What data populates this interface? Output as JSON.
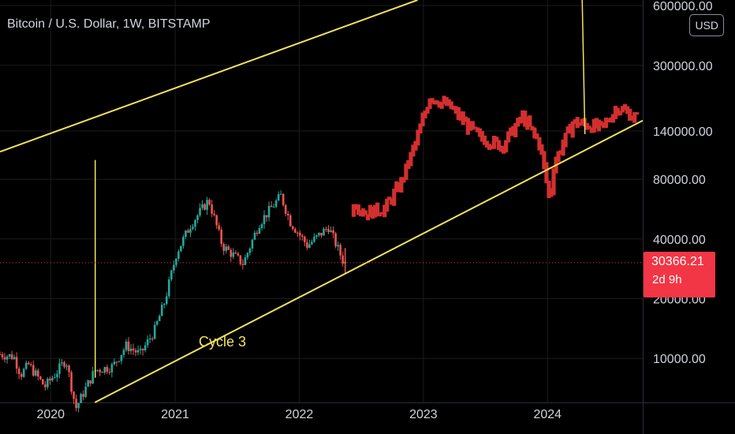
{
  "header": {
    "title": "Bitcoin / U.S. Dollar, 1W, BITSTAMP",
    "currency": "USD"
  },
  "price_tag": {
    "price": "30366.21",
    "countdown": "2d 9h"
  },
  "colors": {
    "up": "#26a69a",
    "down": "#ef5350",
    "projection": "#d32f2f",
    "channel": "#f2e25c",
    "grid": "#1c1c1c",
    "last_price_line": "#f23645"
  },
  "chart_data": {
    "type": "candlestick",
    "title": "Bitcoin / U.S. Dollar, 1W, BITSTAMP",
    "y_scale": "log",
    "ylim": [
      6000,
      640000
    ],
    "xlim": [
      "2019-08-05",
      "2024-10-07"
    ],
    "x_ticks": [
      "2020",
      "2021",
      "2022",
      "2023",
      "2024"
    ],
    "y_ticks": [
      "600000.00",
      "300000.00",
      "140000.00",
      "80000.00",
      "40000.00",
      "20000.00",
      "10000.00"
    ],
    "grid": true,
    "last_price": 30366.21,
    "annotations": [
      {
        "text": "Cycle 3",
        "date": "2021-05-20",
        "price": 11500
      }
    ],
    "channel_lines": [
      {
        "name": "upper",
        "points": [
          {
            "date": "2019-08-05",
            "price": 110000
          },
          {
            "date": "2022-12-15",
            "price": 640000
          }
        ]
      },
      {
        "name": "lower",
        "points": [
          {
            "date": "2020-05-10",
            "price": 6000
          },
          {
            "date": "2024-10-07",
            "price": 158000
          }
        ]
      }
    ],
    "vertical_lines": [
      {
        "date": "2020-05-11",
        "from": 8000,
        "to": 100000
      },
      {
        "from_date": "2024-04-12",
        "from_price": 640000,
        "to_date": "2024-04-20",
        "to_price": 135000
      }
    ],
    "actual_weekly_close_path": [
      {
        "date": "2019-08-05",
        "close": 10500
      },
      {
        "date": "2019-09-15",
        "close": 10200
      },
      {
        "date": "2019-10-05",
        "close": 8300
      },
      {
        "date": "2019-10-28",
        "close": 9300
      },
      {
        "date": "2019-12-15",
        "close": 7200
      },
      {
        "date": "2020-01-20",
        "close": 8600
      },
      {
        "date": "2020-02-15",
        "close": 9900
      },
      {
        "date": "2020-03-15",
        "close": 5600
      },
      {
        "date": "2020-04-10",
        "close": 6900
      },
      {
        "date": "2020-05-10",
        "close": 8700
      },
      {
        "date": "2020-07-01",
        "close": 9100
      },
      {
        "date": "2020-08-10",
        "close": 11600
      },
      {
        "date": "2020-09-20",
        "close": 10500
      },
      {
        "date": "2020-11-01",
        "close": 13800
      },
      {
        "date": "2020-12-01",
        "close": 19300
      },
      {
        "date": "2021-01-05",
        "close": 34000
      },
      {
        "date": "2021-02-15",
        "close": 47000
      },
      {
        "date": "2021-04-10",
        "close": 63000
      },
      {
        "date": "2021-05-20",
        "close": 37000
      },
      {
        "date": "2021-07-20",
        "close": 30000
      },
      {
        "date": "2021-09-05",
        "close": 48000
      },
      {
        "date": "2021-11-08",
        "close": 66000
      },
      {
        "date": "2021-12-05",
        "close": 49000
      },
      {
        "date": "2022-01-25",
        "close": 37000
      },
      {
        "date": "2022-03-28",
        "close": 46000
      },
      {
        "date": "2022-05-10",
        "close": 31000
      },
      {
        "date": "2022-05-16",
        "close": 30366.21
      }
    ],
    "projected_path": [
      {
        "date": "2022-06-10",
        "close": 62000
      },
      {
        "date": "2022-07-15",
        "close": 54000
      },
      {
        "date": "2022-09-10",
        "close": 57000
      },
      {
        "date": "2022-10-25",
        "close": 75000
      },
      {
        "date": "2022-12-15",
        "close": 130000
      },
      {
        "date": "2023-01-20",
        "close": 210000
      },
      {
        "date": "2023-03-20",
        "close": 185000
      },
      {
        "date": "2023-06-15",
        "close": 130000
      },
      {
        "date": "2023-08-20",
        "close": 118000
      },
      {
        "date": "2023-10-20",
        "close": 165000
      },
      {
        "date": "2023-12-10",
        "close": 120000
      },
      {
        "date": "2024-01-08",
        "close": 62000
      },
      {
        "date": "2024-01-20",
        "close": 96000
      },
      {
        "date": "2024-03-15",
        "close": 155000
      },
      {
        "date": "2024-06-10",
        "close": 145000
      },
      {
        "date": "2024-07-25",
        "close": 185000
      },
      {
        "date": "2024-09-25",
        "close": 160000
      }
    ]
  }
}
